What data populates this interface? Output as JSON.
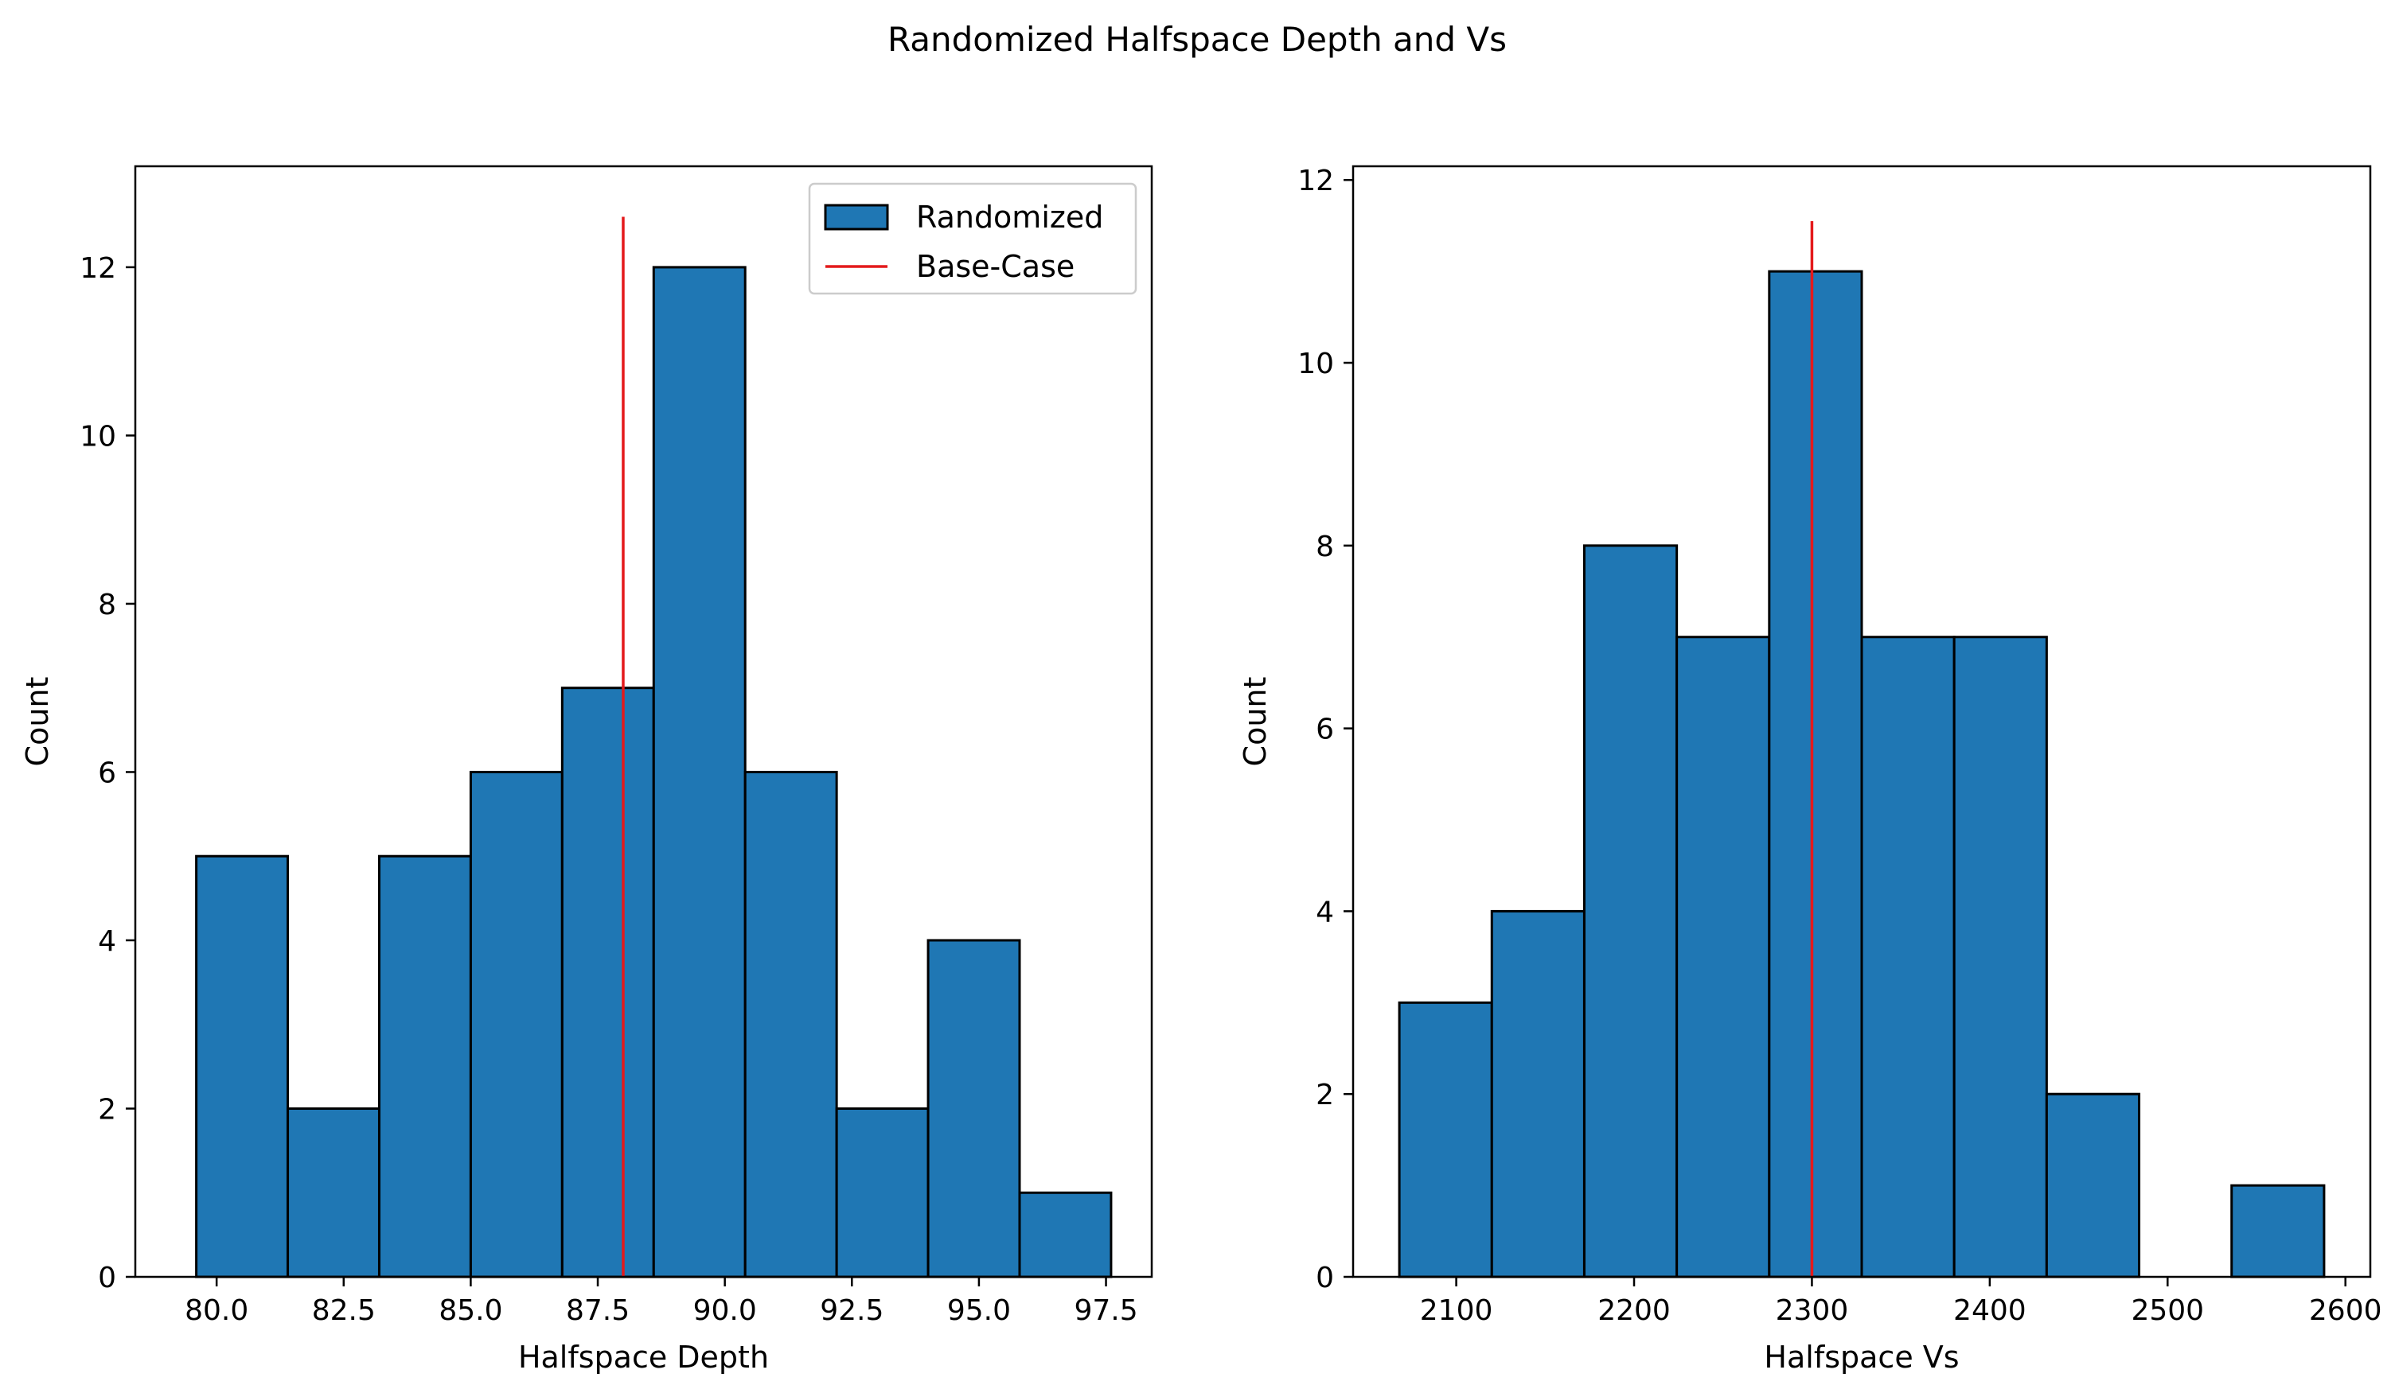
{
  "figure": {
    "suptitle": "Randomized Halfspace Depth and Vs"
  },
  "colors": {
    "bar_fill": "#1f77b4",
    "bar_edge": "#000000",
    "base_case_line": "#e41a1c"
  },
  "chart_data": [
    {
      "type": "bar",
      "subtype": "histogram",
      "xlabel": "Halfspace Depth",
      "ylabel": "Count",
      "bin_edges": [
        79.6,
        81.4,
        83.2,
        85.0,
        86.8,
        88.6,
        90.4,
        92.2,
        94.0,
        95.8,
        97.6
      ],
      "values": [
        5,
        2,
        5,
        6,
        7,
        12,
        6,
        2,
        4,
        1
      ],
      "xlim": [
        78.4,
        98.4
      ],
      "ylim": [
        0,
        13.2
      ],
      "xticks": [
        80.0,
        82.5,
        85.0,
        87.5,
        90.0,
        92.5,
        95.0,
        97.5
      ],
      "xtick_labels": [
        "80.0",
        "82.5",
        "85.0",
        "87.5",
        "90.0",
        "92.5",
        "95.0",
        "97.5"
      ],
      "yticks": [
        0,
        2,
        4,
        6,
        8,
        10,
        12
      ],
      "ytick_labels": [
        "0",
        "2",
        "4",
        "6",
        "8",
        "10",
        "12"
      ],
      "vline": {
        "x": 88.0,
        "y_top": 12.6
      },
      "legend": {
        "placement": "top-right",
        "entries": [
          {
            "label": "Randomized",
            "kind": "patch"
          },
          {
            "label": "Base-Case",
            "kind": "line"
          }
        ]
      }
    },
    {
      "type": "bar",
      "subtype": "histogram",
      "xlabel": "Halfspace Vs",
      "ylabel": "Count",
      "bin_edges": [
        2068,
        2120,
        2172,
        2224,
        2276,
        2328,
        2380,
        2432,
        2484,
        2536,
        2588
      ],
      "values": [
        3,
        4,
        8,
        7,
        11,
        7,
        7,
        2,
        0,
        1
      ],
      "xlim": [
        2042,
        2614
      ],
      "ylim": [
        0,
        12.15
      ],
      "xticks": [
        2100,
        2200,
        2300,
        2400,
        2500,
        2600
      ],
      "xtick_labels": [
        "2100",
        "2200",
        "2300",
        "2400",
        "2500",
        "2600"
      ],
      "yticks": [
        0,
        2,
        4,
        6,
        8,
        10,
        12
      ],
      "ytick_labels": [
        "0",
        "2",
        "4",
        "6",
        "8",
        "10",
        "12"
      ],
      "vline": {
        "x": 2300,
        "y_top": 11.55
      }
    }
  ]
}
